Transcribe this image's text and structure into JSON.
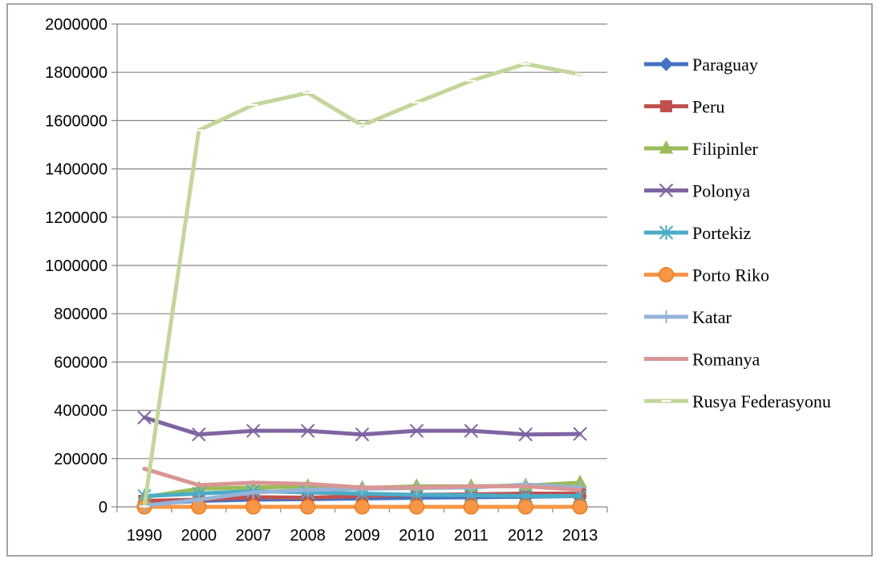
{
  "chart_data": {
    "type": "line",
    "title": "",
    "xlabel": "",
    "ylabel": "",
    "categories": [
      "1990",
      "2000",
      "2007",
      "2008",
      "2009",
      "2010",
      "2011",
      "2012",
      "2013"
    ],
    "ylim": [
      0,
      2000000
    ],
    "yticks": [
      "0",
      "200000",
      "400000",
      "600000",
      "800000",
      "1000000",
      "1200000",
      "1400000",
      "1600000",
      "1800000",
      "2000000"
    ],
    "grid": true,
    "legend_position": "right",
    "series": [
      {
        "name": "Paraguay",
        "color": "#4472C4",
        "marker": "diamond",
        "values": [
          12000,
          25000,
          30000,
          32000,
          35000,
          38000,
          40000,
          42000,
          45000
        ]
      },
      {
        "name": "Peru",
        "color": "#C0504D",
        "marker": "square",
        "values": [
          25000,
          30000,
          40000,
          38000,
          45000,
          50000,
          52000,
          55000,
          55000
        ]
      },
      {
        "name": "Filipinler",
        "color": "#9BBB59",
        "marker": "triangle",
        "values": [
          40000,
          75000,
          80000,
          85000,
          78000,
          85000,
          85000,
          88000,
          100000
        ]
      },
      {
        "name": "Polonya",
        "color": "#8064A2",
        "marker": "x",
        "values": [
          370000,
          300000,
          315000,
          315000,
          300000,
          315000,
          315000,
          300000,
          302000
        ]
      },
      {
        "name": "Portekiz",
        "color": "#4BACC6",
        "marker": "star",
        "values": [
          45000,
          55000,
          65000,
          60000,
          55000,
          50000,
          48000,
          45000,
          45000
        ]
      },
      {
        "name": "Porto Riko",
        "color": "#F79646",
        "marker": "circle",
        "values": [
          0,
          0,
          0,
          0,
          0,
          0,
          0,
          0,
          0
        ]
      },
      {
        "name": "Katar",
        "color": "#95B3D7",
        "marker": "plus",
        "values": [
          5000,
          30000,
          60000,
          70000,
          75000,
          78000,
          80000,
          92000,
          80000
        ]
      },
      {
        "name": "Romanya",
        "color": "#D99694",
        "marker": "none",
        "values": [
          158000,
          90000,
          100000,
          95000,
          80000,
          80000,
          85000,
          85000,
          70000
        ]
      },
      {
        "name": "Rusya Federasyonu",
        "color": "#C3D69B",
        "marker": "dash",
        "values": [
          2000,
          1560000,
          1665000,
          1715000,
          1580000,
          1675000,
          1765000,
          1835000,
          1792000
        ]
      }
    ]
  }
}
